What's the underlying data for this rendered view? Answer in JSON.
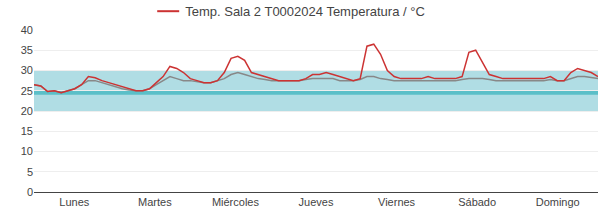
{
  "chart_data": {
    "type": "line",
    "title": "Temp. Sala 2 T0002024 Temperatura / °C",
    "x": [
      0,
      0.0843,
      0.1687,
      0.253,
      0.3373,
      0.4217,
      0.506,
      0.5904,
      0.6747,
      0.759,
      0.8434,
      0.9277,
      1.012,
      1.0964,
      1.1807,
      1.2651,
      1.3494,
      1.4337,
      1.5181,
      1.6024,
      1.6867,
      1.7711,
      1.8554,
      1.9398,
      2.0241,
      2.1084,
      2.1928,
      2.2771,
      2.3614,
      2.4458,
      2.5301,
      2.6145,
      2.6988,
      2.7831,
      2.8675,
      2.9518,
      3.0361,
      3.1205,
      3.2048,
      3.2892,
      3.3735,
      3.4578,
      3.5422,
      3.6265,
      3.7108,
      3.7952,
      3.8795,
      3.9639,
      4.0482,
      4.1325,
      4.2169,
      4.3012,
      4.3855,
      4.4699,
      4.5542,
      4.6386,
      4.7229,
      4.8072,
      4.8916,
      4.9759,
      5.0602,
      5.1446,
      5.2289,
      5.3133,
      5.3976,
      5.4819,
      5.5663,
      5.6506,
      5.7349,
      5.8193,
      5.9036,
      5.988,
      6.0723,
      6.1566,
      6.241,
      6.3253,
      6.4096,
      6.494,
      6.5783,
      6.6627,
      6.747,
      6.8313,
      6.9157,
      7
    ],
    "series": [
      {
        "color": "#888888",
        "values": [
          26.5,
          26.2,
          24.8,
          25.0,
          24.5,
          25.0,
          25.5,
          26.5,
          27.5,
          27.5,
          27.0,
          26.5,
          26.0,
          25.5,
          25.2,
          25.0,
          25.0,
          25.5,
          26.5,
          27.5,
          28.5,
          28.0,
          27.5,
          27.5,
          27.2,
          27.0,
          27.0,
          27.5,
          28.0,
          29.0,
          29.5,
          29.0,
          28.5,
          28.0,
          27.8,
          27.5,
          27.5,
          27.5,
          27.5,
          27.5,
          27.8,
          28.0,
          28.0,
          28.0,
          28.0,
          27.5,
          27.5,
          27.5,
          27.8,
          28.5,
          28.5,
          28.0,
          27.8,
          27.5,
          27.5,
          27.5,
          27.5,
          27.5,
          27.5,
          27.5,
          27.5,
          27.5,
          27.5,
          27.8,
          28.0,
          28.0,
          28.0,
          27.8,
          27.5,
          27.5,
          27.5,
          27.5,
          27.5,
          27.5,
          27.5,
          27.5,
          27.8,
          27.5,
          27.5,
          28.0,
          28.5,
          28.5,
          28.2,
          28.0
        ]
      },
      {
        "color": "#cc3333",
        "values": [
          26.5,
          26.2,
          24.8,
          25.0,
          24.5,
          25.0,
          25.5,
          26.5,
          28.5,
          28.2,
          27.5,
          27.0,
          26.5,
          26.0,
          25.5,
          25.0,
          25.0,
          25.5,
          27.0,
          28.5,
          31.0,
          30.5,
          29.5,
          28.0,
          27.5,
          27.0,
          27.0,
          27.5,
          29.5,
          33.0,
          33.5,
          32.5,
          29.5,
          29.0,
          28.5,
          28.0,
          27.5,
          27.5,
          27.5,
          27.5,
          28.0,
          29.0,
          29.0,
          29.5,
          29.0,
          28.5,
          28.0,
          27.5,
          28.0,
          36.0,
          36.5,
          34.0,
          30.0,
          28.5,
          28.0,
          28.0,
          28.0,
          28.0,
          28.5,
          28.0,
          28.0,
          28.0,
          28.0,
          28.5,
          34.5,
          35.0,
          32.0,
          29.0,
          28.5,
          28.0,
          28.0,
          28.0,
          28.0,
          28.0,
          28.0,
          28.0,
          28.5,
          27.5,
          27.5,
          29.5,
          30.5,
          30.0,
          29.5,
          28.5
        ]
      }
    ],
    "xlim": [
      0,
      7
    ],
    "xticks": [
      {
        "value": 0.5,
        "label": "Lunes"
      },
      {
        "value": 1.5,
        "label": "Martes"
      },
      {
        "value": 2.5,
        "label": "Miércoles"
      },
      {
        "value": 3.5,
        "label": "Jueves"
      },
      {
        "value": 4.5,
        "label": "Viernes"
      },
      {
        "value": 5.5,
        "label": "Sábado"
      },
      {
        "value": 6.5,
        "label": "Domingo"
      }
    ],
    "ylim": [
      0,
      40
    ],
    "yticks": [
      0,
      5,
      10,
      15,
      20,
      25,
      30,
      35,
      40
    ],
    "grid": true,
    "bands": [
      {
        "low": 20,
        "high": 30,
        "color": "#b0dde4"
      },
      {
        "low": 24,
        "high": 25,
        "color": "#5bbfc8"
      }
    ]
  }
}
